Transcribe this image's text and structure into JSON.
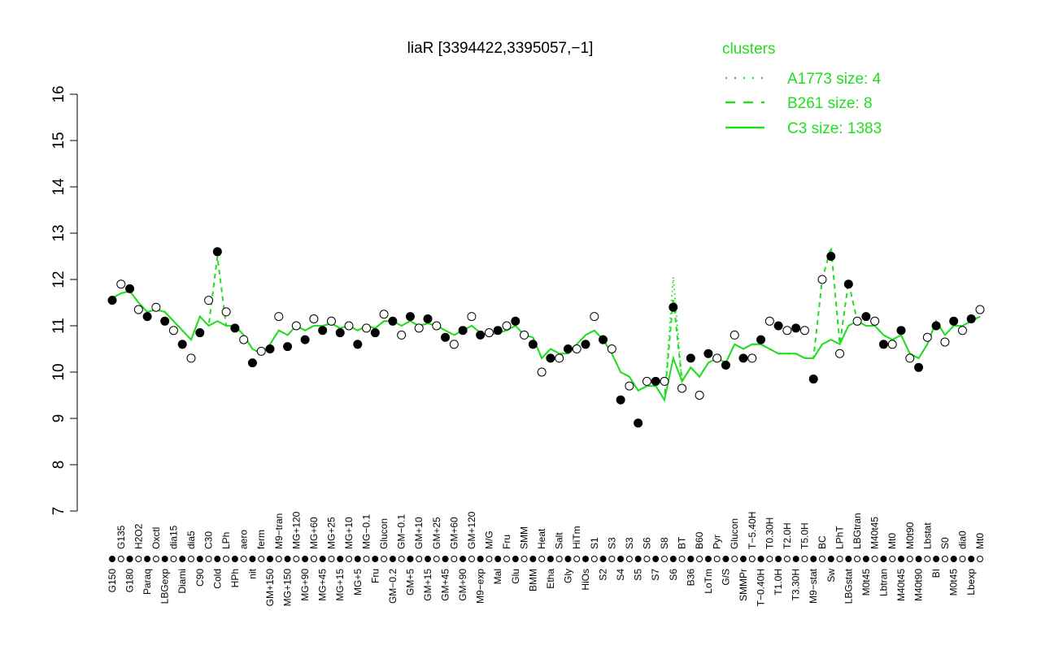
{
  "chart_data": {
    "type": "line",
    "title": "liaR [3394422,3395057,−1]",
    "ylim": [
      7,
      16
    ],
    "yticks": [
      "7",
      "8",
      "9",
      "10",
      "11",
      "12",
      "13",
      "14",
      "15",
      "16"
    ],
    "grid": false,
    "legend": {
      "title": "clusters",
      "placement": "top-right",
      "entries": [
        {
          "label": "A1773 size: 4",
          "style": "dotted"
        },
        {
          "label": "B261 size: 8",
          "style": "dashed"
        },
        {
          "label": "C3 size: 1383",
          "style": "solid"
        }
      ]
    },
    "colors": {
      "line": "#22dd22",
      "point_fill": "#000000",
      "point_open": "#ffffff"
    },
    "points": [
      {
        "label": "G150",
        "value": 11.55,
        "filled": true,
        "c3": 11.6
      },
      {
        "label": "G135",
        "value": 11.9,
        "filled": false,
        "c3": 11.7
      },
      {
        "label": "G180",
        "value": 11.8,
        "filled": true,
        "c3": 11.75
      },
      {
        "label": "H2O2",
        "value": 11.35,
        "filled": false,
        "c3": 11.5
      },
      {
        "label": "Paraq",
        "value": 11.2,
        "filled": true,
        "c3": 11.3
      },
      {
        "label": "Oxctl",
        "value": 11.4,
        "filled": false,
        "c3": 11.35
      },
      {
        "label": "LBGexp",
        "value": 11.1,
        "filled": true,
        "c3": 11.3
      },
      {
        "label": "dia15",
        "value": 10.9,
        "filled": false,
        "c3": 11.1
      },
      {
        "label": "Diami",
        "value": 10.6,
        "filled": true,
        "c3": 10.9
      },
      {
        "label": "dia5",
        "value": 10.3,
        "filled": false,
        "c3": 10.7
      },
      {
        "label": "C90",
        "value": 10.85,
        "filled": true,
        "c3": 11.2
      },
      {
        "label": "C30",
        "value": 11.55,
        "filled": false,
        "c3": 11.0
      },
      {
        "label": "Cold",
        "value": 12.6,
        "filled": true,
        "c3": 11.1,
        "b261": 12.5
      },
      {
        "label": "LPh",
        "value": 11.3,
        "filled": false,
        "c3": 11.0
      },
      {
        "label": "HPh",
        "value": 10.95,
        "filled": true,
        "c3": 11.0
      },
      {
        "label": "aero",
        "value": 10.7,
        "filled": false,
        "c3": 10.8
      },
      {
        "label": "nit",
        "value": 10.2,
        "filled": true,
        "c3": 10.5
      },
      {
        "label": "ferm",
        "value": 10.45,
        "filled": false,
        "c3": 10.4
      },
      {
        "label": "GM+150",
        "value": 10.5,
        "filled": true,
        "c3": 10.6
      },
      {
        "label": "M9−tran",
        "value": 11.2,
        "filled": false,
        "c3": 10.9
      },
      {
        "label": "MG+150",
        "value": 10.55,
        "filled": true,
        "c3": 10.8
      },
      {
        "label": "MG+120",
        "value": 11.0,
        "filled": false,
        "c3": 11.0
      },
      {
        "label": "MG+90",
        "value": 10.7,
        "filled": true,
        "c3": 10.9
      },
      {
        "label": "MG+60",
        "value": 11.15,
        "filled": false,
        "c3": 11.0
      },
      {
        "label": "MG+45",
        "value": 10.9,
        "filled": true,
        "c3": 11.0
      },
      {
        "label": "MG+25",
        "value": 11.1,
        "filled": false,
        "c3": 11.05
      },
      {
        "label": "MG+15",
        "value": 10.85,
        "filled": true,
        "c3": 10.95
      },
      {
        "label": "MG+10",
        "value": 11.0,
        "filled": false,
        "c3": 11.0
      },
      {
        "label": "MG+5",
        "value": 10.6,
        "filled": true,
        "c3": 10.9
      },
      {
        "label": "MG−0.1",
        "value": 10.95,
        "filled": false,
        "c3": 11.0
      },
      {
        "label": "Fru",
        "value": 10.85,
        "filled": true,
        "c3": 10.95
      },
      {
        "label": "Glucon",
        "value": 11.25,
        "filled": false,
        "c3": 11.1
      },
      {
        "label": "GM−0.2",
        "value": 11.1,
        "filled": true,
        "c3": 11.1
      },
      {
        "label": "GM−0.1",
        "value": 10.8,
        "filled": false,
        "c3": 11.0
      },
      {
        "label": "GM+5",
        "value": 11.2,
        "filled": true,
        "c3": 11.1
      },
      {
        "label": "GM+10",
        "value": 10.95,
        "filled": false,
        "c3": 11.0
      },
      {
        "label": "GM+15",
        "value": 11.15,
        "filled": true,
        "c3": 11.05
      },
      {
        "label": "GM+25",
        "value": 11.0,
        "filled": false,
        "c3": 11.0
      },
      {
        "label": "GM+45",
        "value": 10.75,
        "filled": true,
        "c3": 10.9
      },
      {
        "label": "GM+60",
        "value": 10.6,
        "filled": false,
        "c3": 10.8
      },
      {
        "label": "GM+90",
        "value": 10.9,
        "filled": true,
        "c3": 10.9
      },
      {
        "label": "GM+120",
        "value": 11.2,
        "filled": false,
        "c3": 11.0
      },
      {
        "label": "M9−exp",
        "value": 10.8,
        "filled": true,
        "c3": 10.85
      },
      {
        "label": "M/G",
        "value": 10.85,
        "filled": false,
        "c3": 10.8
      },
      {
        "label": "Mal",
        "value": 10.9,
        "filled": true,
        "c3": 10.85
      },
      {
        "label": "Fru",
        "value": 11.0,
        "filled": false,
        "c3": 10.9
      },
      {
        "label": "Glu",
        "value": 11.1,
        "filled": true,
        "c3": 11.0
      },
      {
        "label": "SMM",
        "value": 10.8,
        "filled": false,
        "c3": 10.8
      },
      {
        "label": "BMM",
        "value": 10.6,
        "filled": true,
        "c3": 10.75
      },
      {
        "label": "Heat",
        "value": 10.0,
        "filled": false,
        "c3": 10.3
      },
      {
        "label": "Etha",
        "value": 10.3,
        "filled": true,
        "c3": 10.5
      },
      {
        "label": "Salt",
        "value": 10.3,
        "filled": false,
        "c3": 10.4
      },
      {
        "label": "Gly",
        "value": 10.5,
        "filled": true,
        "c3": 10.4
      },
      {
        "label": "HiTm",
        "value": 10.5,
        "filled": false,
        "c3": 10.6
      },
      {
        "label": "HiOs",
        "value": 10.6,
        "filled": true,
        "c3": 10.8
      },
      {
        "label": "S1",
        "value": 11.2,
        "filled": false,
        "c3": 10.9
      },
      {
        "label": "S2",
        "value": 10.7,
        "filled": true,
        "c3": 10.7
      },
      {
        "label": "S3",
        "value": 10.5,
        "filled": false,
        "c3": 10.4
      },
      {
        "label": "S4",
        "value": 9.4,
        "filled": true,
        "c3": 10.0
      },
      {
        "label": "S3",
        "value": 9.7,
        "filled": false,
        "c3": 9.9
      },
      {
        "label": "S5",
        "value": 8.9,
        "filled": true,
        "c3": 9.6
      },
      {
        "label": "S6",
        "value": 9.8,
        "filled": false,
        "c3": 9.7
      },
      {
        "label": "S7",
        "value": 9.8,
        "filled": true,
        "c3": 9.7
      },
      {
        "label": "S8",
        "value": 9.8,
        "filled": false,
        "c3": 9.4
      },
      {
        "label": "S6",
        "value": 11.4,
        "filled": true,
        "c3": 10.3,
        "b261": 11.6,
        "a1773": 12.05
      },
      {
        "label": "BT",
        "value": 9.65,
        "filled": false,
        "c3": 9.8
      },
      {
        "label": "B36",
        "value": 10.3,
        "filled": true,
        "c3": 10.1
      },
      {
        "label": "B60",
        "value": 9.5,
        "filled": false,
        "c3": 9.9
      },
      {
        "label": "LoTm",
        "value": 10.4,
        "filled": true,
        "c3": 10.2
      },
      {
        "label": "Pyr",
        "value": 10.3,
        "filled": false,
        "c3": 10.3
      },
      {
        "label": "G/S",
        "value": 10.15,
        "filled": true,
        "c3": 10.2
      },
      {
        "label": "Glucon",
        "value": 10.8,
        "filled": false,
        "c3": 10.6
      },
      {
        "label": "SMMPr",
        "value": 10.3,
        "filled": true,
        "c3": 10.5
      },
      {
        "label": "T−5.40H",
        "value": 10.3,
        "filled": false,
        "c3": 10.6
      },
      {
        "label": "T−0.40H",
        "value": 10.7,
        "filled": true,
        "c3": 10.6
      },
      {
        "label": "T0.30H",
        "value": 11.1,
        "filled": false,
        "c3": 10.5
      },
      {
        "label": "T1.0H",
        "value": 11.0,
        "filled": true,
        "c3": 10.4
      },
      {
        "label": "T2.0H",
        "value": 10.9,
        "filled": false,
        "c3": 10.4
      },
      {
        "label": "T3.30H",
        "value": 10.95,
        "filled": true,
        "c3": 10.4
      },
      {
        "label": "T5.0H",
        "value": 10.9,
        "filled": false,
        "c3": 10.3
      },
      {
        "label": "M9−stat",
        "value": 9.85,
        "filled": true,
        "c3": 10.3
      },
      {
        "label": "BC",
        "value": 12.0,
        "filled": false,
        "c3": 10.6,
        "b261": 12.0
      },
      {
        "label": "Sw",
        "value": 12.5,
        "filled": true,
        "c3": 10.7,
        "b261": 12.7
      },
      {
        "label": "LPhT",
        "value": 10.4,
        "filled": false,
        "c3": 10.6
      },
      {
        "label": "LBGstat",
        "value": 11.9,
        "filled": true,
        "c3": 11.0,
        "b261": 11.95
      },
      {
        "label": "LBGtran",
        "value": 11.1,
        "filled": false,
        "c3": 11.1
      },
      {
        "label": "M0t45",
        "value": 11.2,
        "filled": true,
        "c3": 11.0
      },
      {
        "label": "M40t45",
        "value": 11.1,
        "filled": false,
        "c3": 11.0
      },
      {
        "label": "Lbtran",
        "value": 10.6,
        "filled": true,
        "c3": 10.8
      },
      {
        "label": "Mt0",
        "value": 10.6,
        "filled": false,
        "c3": 10.7
      },
      {
        "label": "M40t45",
        "value": 10.9,
        "filled": true,
        "c3": 10.8
      },
      {
        "label": "M0t90",
        "value": 10.3,
        "filled": false,
        "c3": 10.4
      },
      {
        "label": "M40t90",
        "value": 10.1,
        "filled": true,
        "c3": 10.3
      },
      {
        "label": "Lbstat",
        "value": 10.75,
        "filled": false,
        "c3": 10.6
      },
      {
        "label": "BI",
        "value": 11.0,
        "filled": true,
        "c3": 11.1
      },
      {
        "label": "S0",
        "value": 10.65,
        "filled": false,
        "c3": 10.8
      },
      {
        "label": "M0t45",
        "value": 11.1,
        "filled": true,
        "c3": 11.0
      },
      {
        "label": "dia0",
        "value": 10.9,
        "filled": false,
        "c3": 11.0
      },
      {
        "label": "Lbexp",
        "value": 11.15,
        "filled": true,
        "c3": 11.1
      },
      {
        "label": "Mt0",
        "value": 11.35,
        "filled": false,
        "c3": 11.2
      }
    ]
  }
}
